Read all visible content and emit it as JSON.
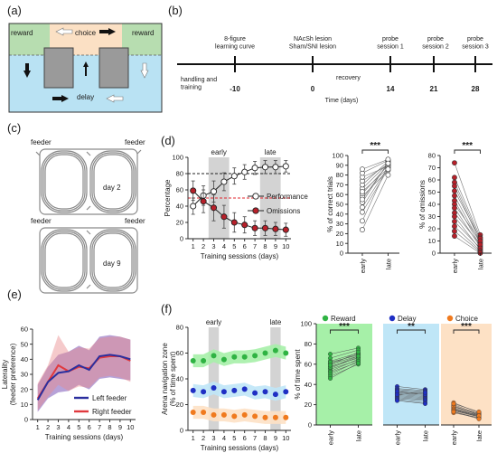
{
  "panel_labels": {
    "a": "(a)",
    "b": "(b)",
    "c": "(c)",
    "d": "(d)",
    "e": "(e)",
    "f": "(f)"
  },
  "colors": {
    "reward_zone": "#b7ddb0",
    "choice_zone": "#fbe0c4",
    "delay_zone": "#b9e2f3",
    "performance": "#ffffff",
    "omissions": "#b8202a",
    "dashed_red": "#e0242c",
    "left_feeder": "#2b2f9e",
    "right_feeder": "#e0393e",
    "f_reward": "#2fb343",
    "f_delay": "#1f2fc4",
    "f_choice": "#f07a1e",
    "f_reward_bg": "#a6f0a8",
    "f_delay_bg": "#bfe6f7",
    "f_choice_bg": "#fde1c5",
    "grey_band": "#d3d3d3"
  },
  "maze": {
    "reward_left": "reward",
    "choice": "choice",
    "reward_right": "reward",
    "delay": "delay"
  },
  "timeline": {
    "events": [
      {
        "label": "8-figure\nlearning curve",
        "tick": "-10"
      },
      {
        "label": "NAcSh lesion\nSham/SNI lesion",
        "tick": "0"
      },
      {
        "label": "probe\nsession 1",
        "tick": "14"
      },
      {
        "label": "probe\nsession 2",
        "tick": "21"
      },
      {
        "label": "probe\nsession 3",
        "tick": "28"
      }
    ],
    "handling": "handling  and\ntraining",
    "recovery": "recovery",
    "xlabel": "Time (days)"
  },
  "panel_c": {
    "feeder_left": "feeder",
    "feeder_right": "feeder",
    "day_top": "day 2",
    "day_bottom": "day 9"
  },
  "chart_data": [
    {
      "id": "d_learning",
      "type": "line",
      "x": [
        1,
        2,
        3,
        4,
        5,
        6,
        7,
        8,
        9,
        10
      ],
      "series": [
        {
          "name": "Performance",
          "values": [
            40,
            53,
            58,
            70,
            77,
            82,
            87,
            88,
            88,
            89
          ],
          "err": [
            10,
            12,
            13,
            11,
            10,
            9,
            8,
            8,
            8,
            7
          ]
        },
        {
          "name": "Omissions",
          "values": [
            59,
            46,
            38,
            27,
            20,
            17,
            13,
            13,
            12,
            11
          ],
          "err": [
            12,
            14,
            16,
            14,
            12,
            10,
            9,
            9,
            8,
            8
          ]
        }
      ],
      "bands": [
        {
          "label": "early",
          "from": 2.5,
          "to": 4.5
        },
        {
          "label": "late",
          "from": 7.5,
          "to": 9.5
        }
      ],
      "reference_lines": [
        80,
        50
      ],
      "xlabel": "Training sessions (days)",
      "ylabel": "Percentage",
      "ylim": [
        0,
        100
      ],
      "yticks": [
        0,
        20,
        40,
        60,
        80,
        100
      ]
    },
    {
      "id": "d_correct",
      "type": "scatter",
      "categories": [
        "early",
        "late"
      ],
      "pairs": [
        [
          33,
          90
        ],
        [
          47,
          88
        ],
        [
          52,
          93
        ],
        [
          58,
          85
        ],
        [
          61,
          90
        ],
        [
          66,
          92
        ],
        [
          70,
          94
        ],
        [
          74,
          91
        ],
        [
          78,
          89
        ],
        [
          82,
          95
        ],
        [
          86,
          96
        ],
        [
          63,
          87
        ],
        [
          55,
          92
        ],
        [
          42,
          86
        ],
        [
          24,
          80
        ]
      ],
      "significance": "***",
      "ylabel": "% of correct trials",
      "ylim": [
        0,
        100
      ],
      "yticks": [
        0,
        10,
        20,
        30,
        40,
        50,
        60,
        70,
        80,
        90,
        100
      ]
    },
    {
      "id": "d_omissions",
      "type": "scatter",
      "categories": [
        "early",
        "late"
      ],
      "pairs": [
        [
          74,
          15
        ],
        [
          62,
          13
        ],
        [
          58,
          11
        ],
        [
          55,
          9
        ],
        [
          51,
          12
        ],
        [
          47,
          8
        ],
        [
          43,
          6
        ],
        [
          40,
          10
        ],
        [
          37,
          5
        ],
        [
          33,
          7
        ],
        [
          30,
          3
        ],
        [
          26,
          4
        ],
        [
          22,
          2
        ],
        [
          18,
          1
        ],
        [
          14,
          0
        ]
      ],
      "significance": "***",
      "ylabel": "% of omissions",
      "ylim": [
        0,
        80
      ],
      "yticks": [
        0,
        10,
        20,
        30,
        40,
        50,
        60,
        70,
        80
      ]
    },
    {
      "id": "e_laterality",
      "type": "area",
      "x": [
        1,
        2,
        3,
        4,
        5,
        6,
        7,
        8,
        9,
        10
      ],
      "series": [
        {
          "name": "Left feeder",
          "values": [
            13,
            25,
            31,
            32,
            36,
            33,
            42,
            43,
            42,
            40
          ],
          "lower": [
            5,
            14,
            18,
            19,
            23,
            20,
            27,
            28,
            27,
            26
          ],
          "upper": [
            23,
            35,
            43,
            45,
            49,
            46,
            55,
            56,
            55,
            53
          ]
        },
        {
          "name": "Right feeder",
          "values": [
            14,
            25,
            36,
            32,
            35,
            34,
            41,
            42,
            42,
            39
          ],
          "lower": [
            6,
            15,
            23,
            19,
            22,
            21,
            28,
            29,
            28,
            25
          ],
          "upper": [
            24,
            36,
            56,
            45,
            48,
            47,
            54,
            55,
            55,
            53
          ]
        }
      ],
      "xlabel": "Training sessions (days)",
      "ylabel": "Laterality\n(feeder preference)",
      "ylim": [
        0,
        60
      ],
      "yticks": [
        0,
        10,
        20,
        30,
        40,
        50,
        60
      ]
    },
    {
      "id": "f_zones",
      "type": "scatter",
      "x": [
        1,
        2,
        3,
        4,
        5,
        6,
        7,
        8,
        9,
        10
      ],
      "series": [
        {
          "name": "Reward",
          "values": [
            54,
            54,
            58,
            55,
            57,
            57,
            58,
            60,
            62,
            60
          ]
        },
        {
          "name": "Delay",
          "values": [
            31,
            30,
            33,
            30,
            31,
            32,
            29,
            30,
            28,
            30
          ]
        },
        {
          "name": "Choice",
          "values": [
            14,
            14,
            12,
            12,
            11,
            12,
            11,
            10,
            10,
            10
          ]
        }
      ],
      "bands": [
        {
          "label": "early",
          "from": 2.5,
          "to": 3.5
        },
        {
          "label": "late",
          "from": 8.5,
          "to": 9.5
        }
      ],
      "xlabel": "Training sessions (days)",
      "ylabel": "Arena navigation zone\n(% of time spent)",
      "ylim": [
        0,
        80
      ],
      "yticks": [
        0,
        20,
        40,
        60,
        80
      ]
    },
    {
      "id": "f_time_spent",
      "type": "scatter",
      "ylabel": "% of time spent",
      "ylim": [
        0,
        100
      ],
      "yticks": [
        0,
        20,
        40,
        60,
        80,
        100
      ],
      "groups": [
        {
          "name": "Reward",
          "significance": "***",
          "categories": [
            "early",
            "late"
          ],
          "pairs": [
            [
              70,
              76
            ],
            [
              66,
              74
            ],
            [
              63,
              71
            ],
            [
              61,
              70
            ],
            [
              60,
              68
            ],
            [
              58,
              66
            ],
            [
              56,
              67
            ],
            [
              55,
              64
            ],
            [
              53,
              65
            ],
            [
              52,
              62
            ],
            [
              50,
              63
            ],
            [
              48,
              60
            ],
            [
              46,
              61
            ],
            [
              62,
              69
            ],
            [
              57,
              68
            ],
            [
              59,
              72
            ]
          ]
        },
        {
          "name": "Delay",
          "significance": "**",
          "categories": [
            "early",
            "late"
          ],
          "pairs": [
            [
              38,
              35
            ],
            [
              36,
              34
            ],
            [
              35,
              33
            ],
            [
              34,
              32
            ],
            [
              33,
              31
            ],
            [
              32,
              30
            ],
            [
              31,
              29
            ],
            [
              30,
              28
            ],
            [
              29,
              27
            ],
            [
              28,
              26
            ],
            [
              27,
              25
            ],
            [
              26,
              24
            ],
            [
              25,
              22
            ],
            [
              24,
              21
            ],
            [
              33,
              30
            ],
            [
              30,
              32
            ]
          ]
        },
        {
          "name": "Choice",
          "significance": "***",
          "categories": [
            "early",
            "late"
          ],
          "pairs": [
            [
              22,
              12
            ],
            [
              20,
              11
            ],
            [
              19,
              10
            ],
            [
              18,
              10
            ],
            [
              17,
              9
            ],
            [
              16,
              9
            ],
            [
              15,
              8
            ],
            [
              14,
              8
            ],
            [
              13,
              7
            ],
            [
              12,
              7
            ],
            [
              18,
              11
            ],
            [
              16,
              8
            ],
            [
              15,
              10
            ],
            [
              21,
              13
            ],
            [
              14,
              9
            ],
            [
              13,
              6
            ]
          ]
        }
      ]
    }
  ]
}
